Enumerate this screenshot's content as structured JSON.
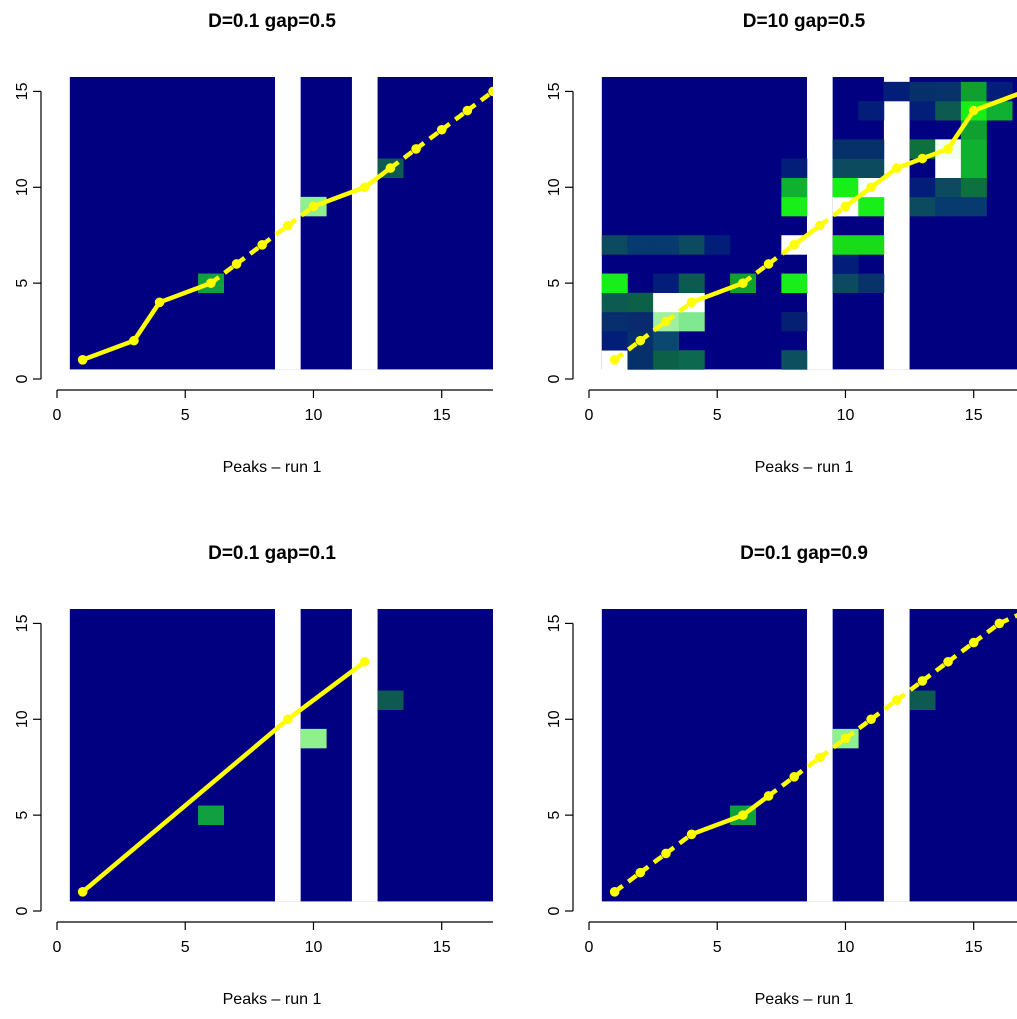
{
  "chart_data": [
    {
      "type": "heatmap",
      "title": "D=0.1 gap=0.5",
      "xlabel": "Peaks – run 1",
      "ylabel": "",
      "xlim": [
        0,
        17
      ],
      "ylim": [
        0,
        16
      ],
      "xticks": [
        "0",
        "5",
        "10",
        "15"
      ],
      "yticks": [
        "0",
        "5",
        "10",
        "15"
      ],
      "grid": false,
      "background_color": "#000080",
      "missing_columns": [
        9,
        12
      ],
      "cells": [
        {
          "x": 6,
          "y": 5,
          "color": "#10a040"
        },
        {
          "x": 10,
          "y": 9,
          "color": "#90f090"
        },
        {
          "x": 13,
          "y": 11,
          "color": "#0f5a50"
        }
      ],
      "path": {
        "color": "#ffff00",
        "points": [
          [
            1,
            1
          ],
          [
            3,
            2
          ],
          [
            4,
            4
          ],
          [
            6,
            5
          ],
          [
            7,
            6
          ],
          [
            8,
            7
          ],
          [
            9,
            8
          ],
          [
            10,
            9
          ],
          [
            12,
            10
          ],
          [
            13,
            11
          ],
          [
            14,
            12
          ],
          [
            15,
            13
          ],
          [
            16,
            14
          ],
          [
            17,
            15
          ]
        ],
        "line_styles": [
          "solid",
          "solid",
          "solid",
          "dashed",
          "dashed",
          "dashed",
          "dashed",
          "solid",
          "solid",
          "dashed",
          "dashed",
          "dashed",
          "dashed"
        ]
      }
    },
    {
      "type": "heatmap",
      "title": "D=10 gap=0.5",
      "xlabel": "Peaks – run 1",
      "ylabel": "",
      "xlim": [
        0,
        17
      ],
      "ylim": [
        0,
        16
      ],
      "xticks": [
        "0",
        "5",
        "10",
        "15"
      ],
      "yticks": [
        "0",
        "5",
        "10",
        "15"
      ],
      "grid": false,
      "background_color": "#000080",
      "missing_columns": [
        9,
        12
      ],
      "cells": [
        {
          "x": 1,
          "y": 1,
          "color": "#ffffff"
        },
        {
          "x": 2,
          "y": 1,
          "color": "#06306a"
        },
        {
          "x": 3,
          "y": 1,
          "color": "#0d6048"
        },
        {
          "x": 4,
          "y": 1,
          "color": "#0d6850"
        },
        {
          "x": 8,
          "y": 1,
          "color": "#0c5060"
        },
        {
          "x": 1,
          "y": 2,
          "color": "#031e78"
        },
        {
          "x": 2,
          "y": 2,
          "color": "#06306a"
        },
        {
          "x": 3,
          "y": 2,
          "color": "#0a4870"
        },
        {
          "x": 1,
          "y": 3,
          "color": "#082f6d"
        },
        {
          "x": 2,
          "y": 3,
          "color": "#0a2a70"
        },
        {
          "x": 3,
          "y": 3,
          "color": "#a0f0a0"
        },
        {
          "x": 4,
          "y": 3,
          "color": "#80e890"
        },
        {
          "x": 8,
          "y": 3,
          "color": "#052070"
        },
        {
          "x": 1,
          "y": 4,
          "color": "#0c5a50"
        },
        {
          "x": 2,
          "y": 4,
          "color": "#0d6048"
        },
        {
          "x": 3,
          "y": 4,
          "color": "#ffffff"
        },
        {
          "x": 4,
          "y": 4,
          "color": "#ffffff"
        },
        {
          "x": 1,
          "y": 5,
          "color": "#18ee18"
        },
        {
          "x": 3,
          "y": 5,
          "color": "#031e78"
        },
        {
          "x": 4,
          "y": 5,
          "color": "#0c5a50"
        },
        {
          "x": 6,
          "y": 5,
          "color": "#10a030"
        },
        {
          "x": 8,
          "y": 5,
          "color": "#18ee18"
        },
        {
          "x": 10,
          "y": 5,
          "color": "#0c4a62"
        },
        {
          "x": 11,
          "y": 5,
          "color": "#08326a"
        },
        {
          "x": 10,
          "y": 6,
          "color": "#031e78"
        },
        {
          "x": 1,
          "y": 7,
          "color": "#0c4a5f"
        },
        {
          "x": 2,
          "y": 7,
          "color": "#073a6e"
        },
        {
          "x": 3,
          "y": 7,
          "color": "#073a6e"
        },
        {
          "x": 4,
          "y": 7,
          "color": "#0c4a5f"
        },
        {
          "x": 5,
          "y": 7,
          "color": "#031e78"
        },
        {
          "x": 8,
          "y": 7,
          "color": "#ffffff"
        },
        {
          "x": 10,
          "y": 7,
          "color": "#18dc18"
        },
        {
          "x": 11,
          "y": 7,
          "color": "#18dc18"
        },
        {
          "x": 8,
          "y": 9,
          "color": "#18ee18"
        },
        {
          "x": 10,
          "y": 9,
          "color": "#ffffff"
        },
        {
          "x": 11,
          "y": 9,
          "color": "#18ee18"
        },
        {
          "x": 13,
          "y": 9,
          "color": "#0c4a5f"
        },
        {
          "x": 14,
          "y": 9,
          "color": "#073a6e"
        },
        {
          "x": 15,
          "y": 9,
          "color": "#073a6e"
        },
        {
          "x": 8,
          "y": 10,
          "color": "#10b030"
        },
        {
          "x": 10,
          "y": 10,
          "color": "#18ee18"
        },
        {
          "x": 11,
          "y": 10,
          "color": "#ffffff"
        },
        {
          "x": 13,
          "y": 10,
          "color": "#031e78"
        },
        {
          "x": 14,
          "y": 10,
          "color": "#0c4a5f"
        },
        {
          "x": 15,
          "y": 10,
          "color": "#0d7040"
        },
        {
          "x": 8,
          "y": 11,
          "color": "#031e78"
        },
        {
          "x": 10,
          "y": 11,
          "color": "#0c4a5f"
        },
        {
          "x": 11,
          "y": 11,
          "color": "#0c4a5f"
        },
        {
          "x": 14,
          "y": 11,
          "color": "#ffffff"
        },
        {
          "x": 15,
          "y": 11,
          "color": "#10b030"
        },
        {
          "x": 10,
          "y": 12,
          "color": "#06306a"
        },
        {
          "x": 11,
          "y": 12,
          "color": "#06306a"
        },
        {
          "x": 13,
          "y": 12,
          "color": "#0d7040"
        },
        {
          "x": 14,
          "y": 12,
          "color": "#f0fff0"
        },
        {
          "x": 15,
          "y": 12,
          "color": "#10b030"
        },
        {
          "x": 15,
          "y": 13,
          "color": "#10a030"
        },
        {
          "x": 11,
          "y": 14,
          "color": "#031e78"
        },
        {
          "x": 13,
          "y": 14,
          "color": "#031e78"
        },
        {
          "x": 14,
          "y": 14,
          "color": "#0c5a50"
        },
        {
          "x": 15,
          "y": 14,
          "color": "#18ee18"
        },
        {
          "x": 16,
          "y": 14,
          "color": "#10b030"
        },
        {
          "x": 12,
          "y": 15,
          "color": "#031e78"
        },
        {
          "x": 13,
          "y": 15,
          "color": "#06306a"
        },
        {
          "x": 14,
          "y": 15,
          "color": "#08326a"
        },
        {
          "x": 15,
          "y": 15,
          "color": "#10a030"
        },
        {
          "x": 16,
          "y": 15,
          "color": "#031e78"
        }
      ],
      "path": {
        "color": "#ffff00",
        "points": [
          [
            1,
            1
          ],
          [
            2,
            2
          ],
          [
            3,
            3
          ],
          [
            4,
            4
          ],
          [
            6,
            5
          ],
          [
            7,
            6
          ],
          [
            8,
            7
          ],
          [
            9,
            8
          ],
          [
            10,
            9
          ],
          [
            11,
            10
          ],
          [
            12,
            11
          ],
          [
            13,
            11.5
          ],
          [
            14,
            12
          ],
          [
            15,
            14
          ],
          [
            17,
            15
          ]
        ],
        "line_styles": [
          "dashed",
          "dashed",
          "dashed",
          "solid",
          "dashed",
          "dashed",
          "solid",
          "dashed",
          "solid",
          "solid",
          "solid",
          "solid",
          "solid",
          "solid"
        ]
      }
    },
    {
      "type": "heatmap",
      "title": "D=0.1 gap=0.1",
      "xlabel": "Peaks – run 1",
      "ylabel": "",
      "xlim": [
        0,
        17
      ],
      "ylim": [
        0,
        16
      ],
      "xticks": [
        "0",
        "5",
        "10",
        "15"
      ],
      "yticks": [
        "0",
        "5",
        "10",
        "15"
      ],
      "grid": false,
      "background_color": "#000080",
      "missing_columns": [
        9,
        12
      ],
      "cells": [
        {
          "x": 6,
          "y": 5,
          "color": "#10a040"
        },
        {
          "x": 10,
          "y": 9,
          "color": "#90f090"
        },
        {
          "x": 13,
          "y": 11,
          "color": "#0f5a50"
        }
      ],
      "path": {
        "color": "#ffff00",
        "points": [
          [
            1,
            1
          ],
          [
            9,
            10
          ],
          [
            12,
            13
          ]
        ],
        "line_styles": [
          "solid",
          "solid"
        ]
      }
    },
    {
      "type": "heatmap",
      "title": "D=0.1 gap=0.9",
      "xlabel": "Peaks – run 1",
      "ylabel": "",
      "xlim": [
        0,
        17
      ],
      "ylim": [
        0,
        16
      ],
      "xticks": [
        "0",
        "5",
        "10",
        "15"
      ],
      "yticks": [
        "0",
        "5",
        "10",
        "15"
      ],
      "grid": false,
      "background_color": "#000080",
      "missing_columns": [
        9,
        12
      ],
      "cells": [
        {
          "x": 6,
          "y": 5,
          "color": "#10a040"
        },
        {
          "x": 10,
          "y": 9,
          "color": "#90f090"
        },
        {
          "x": 13,
          "y": 11,
          "color": "#0f5a50"
        }
      ],
      "path": {
        "color": "#ffff00",
        "points": [
          [
            1,
            1
          ],
          [
            2,
            2
          ],
          [
            3,
            3
          ],
          [
            4,
            4
          ],
          [
            6,
            5
          ],
          [
            7,
            6
          ],
          [
            8,
            7
          ],
          [
            9,
            8
          ],
          [
            10,
            9
          ],
          [
            11,
            10
          ],
          [
            12,
            11
          ],
          [
            13,
            12
          ],
          [
            14,
            13
          ],
          [
            15,
            14
          ],
          [
            16,
            15
          ],
          [
            17,
            15.6
          ]
        ],
        "line_styles": [
          "dashed",
          "dashed",
          "dashed",
          "solid",
          "solid",
          "dashed",
          "dashed",
          "dashed",
          "dashed",
          "dashed",
          "dashed",
          "dashed",
          "dashed",
          "dashed",
          "dashed"
        ]
      }
    }
  ]
}
